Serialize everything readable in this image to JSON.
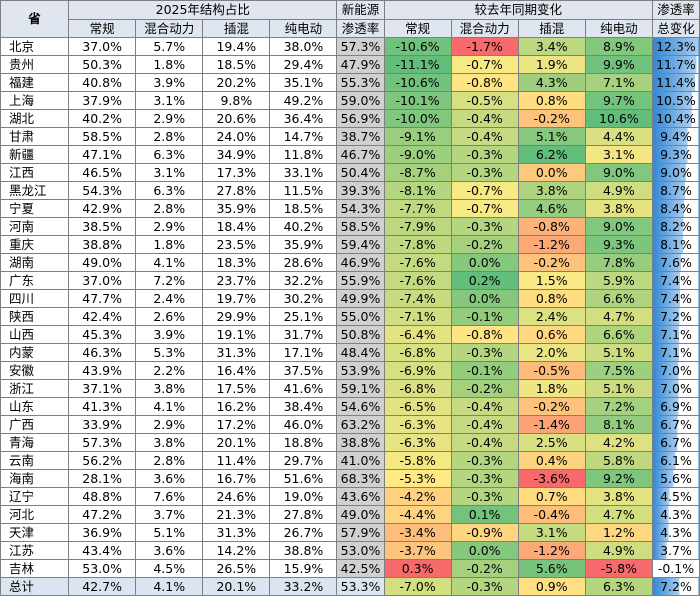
{
  "headers": {
    "province": "省",
    "group_structure": "2025年结构占比",
    "penetration_line1": "新能源",
    "penetration_line2": "渗透率",
    "group_change": "较去年同期变化",
    "total_pen_line1": "渗透率",
    "total_pen_line2": "总变化",
    "cols": [
      "常规",
      "混合动力",
      "插混",
      "纯电动"
    ]
  },
  "colors": {
    "header_bg": "#dfe6f0",
    "penetration_bg": "#d0d0d0",
    "total_row_bg": "#dbe5f1"
  },
  "rows": [
    {
      "p": "北京",
      "s": [
        "37.0%",
        "5.7%",
        "19.4%",
        "38.0%"
      ],
      "pen": "57.3%",
      "c": [
        "-10.6%",
        "-1.7%",
        "3.4%",
        "8.9%"
      ],
      "t": "12.3%"
    },
    {
      "p": "贵州",
      "s": [
        "50.3%",
        "1.8%",
        "18.5%",
        "29.4%"
      ],
      "pen": "47.9%",
      "c": [
        "-11.1%",
        "-0.7%",
        "1.9%",
        "9.9%"
      ],
      "t": "11.7%"
    },
    {
      "p": "福建",
      "s": [
        "40.8%",
        "3.9%",
        "20.2%",
        "35.1%"
      ],
      "pen": "55.3%",
      "c": [
        "-10.6%",
        "-0.8%",
        "4.3%",
        "7.1%"
      ],
      "t": "11.4%"
    },
    {
      "p": "上海",
      "s": [
        "37.9%",
        "3.1%",
        "9.8%",
        "49.2%"
      ],
      "pen": "59.0%",
      "c": [
        "-10.1%",
        "-0.5%",
        "0.8%",
        "9.7%"
      ],
      "t": "10.5%"
    },
    {
      "p": "湖北",
      "s": [
        "40.2%",
        "2.9%",
        "20.6%",
        "36.4%"
      ],
      "pen": "56.9%",
      "c": [
        "-10.0%",
        "-0.4%",
        "-0.2%",
        "10.6%"
      ],
      "t": "10.4%"
    },
    {
      "p": "甘肃",
      "s": [
        "58.5%",
        "2.8%",
        "24.0%",
        "14.7%"
      ],
      "pen": "38.7%",
      "c": [
        "-9.1%",
        "-0.4%",
        "5.1%",
        "4.4%"
      ],
      "t": "9.4%"
    },
    {
      "p": "新疆",
      "s": [
        "47.1%",
        "6.3%",
        "34.9%",
        "11.8%"
      ],
      "pen": "46.7%",
      "c": [
        "-9.0%",
        "-0.3%",
        "6.2%",
        "3.1%"
      ],
      "t": "9.3%"
    },
    {
      "p": "江西",
      "s": [
        "46.5%",
        "3.1%",
        "17.3%",
        "33.1%"
      ],
      "pen": "50.4%",
      "c": [
        "-8.7%",
        "-0.3%",
        "0.0%",
        "9.0%"
      ],
      "t": "9.0%"
    },
    {
      "p": "黑龙江",
      "s": [
        "54.3%",
        "6.3%",
        "27.8%",
        "11.5%"
      ],
      "pen": "39.3%",
      "c": [
        "-8.1%",
        "-0.7%",
        "3.8%",
        "4.9%"
      ],
      "t": "8.7%"
    },
    {
      "p": "宁夏",
      "s": [
        "42.9%",
        "2.8%",
        "35.9%",
        "18.5%"
      ],
      "pen": "54.3%",
      "c": [
        "-7.7%",
        "-0.7%",
        "4.6%",
        "3.8%"
      ],
      "t": "8.4%"
    },
    {
      "p": "河南",
      "s": [
        "38.5%",
        "2.9%",
        "18.4%",
        "40.2%"
      ],
      "pen": "58.5%",
      "c": [
        "-7.9%",
        "-0.3%",
        "-0.8%",
        "9.0%"
      ],
      "t": "8.2%"
    },
    {
      "p": "重庆",
      "s": [
        "38.8%",
        "1.8%",
        "23.5%",
        "35.9%"
      ],
      "pen": "59.4%",
      "c": [
        "-7.8%",
        "-0.2%",
        "-1.2%",
        "9.3%"
      ],
      "t": "8.1%"
    },
    {
      "p": "湖南",
      "s": [
        "49.0%",
        "4.1%",
        "18.3%",
        "28.6%"
      ],
      "pen": "46.9%",
      "c": [
        "-7.6%",
        "0.0%",
        "-0.2%",
        "7.8%"
      ],
      "t": "7.6%"
    },
    {
      "p": "广东",
      "s": [
        "37.0%",
        "7.2%",
        "23.7%",
        "32.2%"
      ],
      "pen": "55.9%",
      "c": [
        "-7.6%",
        "0.2%",
        "1.5%",
        "5.9%"
      ],
      "t": "7.4%"
    },
    {
      "p": "四川",
      "s": [
        "47.7%",
        "2.4%",
        "19.7%",
        "30.2%"
      ],
      "pen": "49.9%",
      "c": [
        "-7.4%",
        "0.0%",
        "0.8%",
        "6.6%"
      ],
      "t": "7.4%"
    },
    {
      "p": "陕西",
      "s": [
        "42.4%",
        "2.6%",
        "29.9%",
        "25.1%"
      ],
      "pen": "55.0%",
      "c": [
        "-7.1%",
        "-0.1%",
        "2.4%",
        "4.7%"
      ],
      "t": "7.2%"
    },
    {
      "p": "山西",
      "s": [
        "45.3%",
        "3.9%",
        "19.1%",
        "31.7%"
      ],
      "pen": "50.8%",
      "c": [
        "-6.4%",
        "-0.8%",
        "0.6%",
        "6.6%"
      ],
      "t": "7.1%"
    },
    {
      "p": "内蒙",
      "s": [
        "46.3%",
        "5.3%",
        "31.3%",
        "17.1%"
      ],
      "pen": "48.4%",
      "c": [
        "-6.8%",
        "-0.3%",
        "2.0%",
        "5.1%"
      ],
      "t": "7.1%"
    },
    {
      "p": "安徽",
      "s": [
        "43.9%",
        "2.2%",
        "16.4%",
        "37.5%"
      ],
      "pen": "53.9%",
      "c": [
        "-6.9%",
        "-0.1%",
        "-0.5%",
        "7.5%"
      ],
      "t": "7.0%"
    },
    {
      "p": "浙江",
      "s": [
        "37.1%",
        "3.8%",
        "17.5%",
        "41.6%"
      ],
      "pen": "59.1%",
      "c": [
        "-6.8%",
        "-0.2%",
        "1.8%",
        "5.1%"
      ],
      "t": "7.0%"
    },
    {
      "p": "山东",
      "s": [
        "41.3%",
        "4.1%",
        "16.2%",
        "38.4%"
      ],
      "pen": "54.6%",
      "c": [
        "-6.5%",
        "-0.4%",
        "-0.2%",
        "7.2%"
      ],
      "t": "6.9%"
    },
    {
      "p": "广西",
      "s": [
        "33.9%",
        "2.9%",
        "17.2%",
        "46.0%"
      ],
      "pen": "63.2%",
      "c": [
        "-6.3%",
        "-0.4%",
        "-1.4%",
        "8.1%"
      ],
      "t": "6.7%"
    },
    {
      "p": "青海",
      "s": [
        "57.3%",
        "3.8%",
        "20.1%",
        "18.8%"
      ],
      "pen": "38.8%",
      "c": [
        "-6.3%",
        "-0.4%",
        "2.5%",
        "4.2%"
      ],
      "t": "6.7%"
    },
    {
      "p": "云南",
      "s": [
        "56.2%",
        "2.8%",
        "11.4%",
        "29.7%"
      ],
      "pen": "41.0%",
      "c": [
        "-5.8%",
        "-0.3%",
        "0.4%",
        "5.8%"
      ],
      "t": "6.1%"
    },
    {
      "p": "海南",
      "s": [
        "28.1%",
        "3.6%",
        "16.7%",
        "51.6%"
      ],
      "pen": "68.3%",
      "c": [
        "-5.3%",
        "-0.3%",
        "-3.6%",
        "9.2%"
      ],
      "t": "5.6%"
    },
    {
      "p": "辽宁",
      "s": [
        "48.8%",
        "7.6%",
        "24.6%",
        "19.0%"
      ],
      "pen": "43.6%",
      "c": [
        "-4.2%",
        "-0.3%",
        "0.7%",
        "3.8%"
      ],
      "t": "4.5%"
    },
    {
      "p": "河北",
      "s": [
        "47.2%",
        "3.7%",
        "21.3%",
        "27.8%"
      ],
      "pen": "49.0%",
      "c": [
        "-4.4%",
        "0.1%",
        "-0.4%",
        "4.7%"
      ],
      "t": "4.3%"
    },
    {
      "p": "天津",
      "s": [
        "36.9%",
        "5.1%",
        "31.3%",
        "26.7%"
      ],
      "pen": "57.9%",
      "c": [
        "-3.4%",
        "-0.9%",
        "3.1%",
        "1.2%"
      ],
      "t": "4.3%"
    },
    {
      "p": "江苏",
      "s": [
        "43.4%",
        "3.6%",
        "14.2%",
        "38.8%"
      ],
      "pen": "53.0%",
      "c": [
        "-3.7%",
        "0.0%",
        "-1.2%",
        "4.9%"
      ],
      "t": "3.7%"
    },
    {
      "p": "吉林",
      "s": [
        "53.0%",
        "4.5%",
        "26.5%",
        "15.9%"
      ],
      "pen": "42.5%",
      "c": [
        "0.3%",
        "-0.2%",
        "5.6%",
        "-5.8%"
      ],
      "t": "-0.1%"
    }
  ],
  "total": {
    "p": "总计",
    "s": [
      "42.7%",
      "4.1%",
      "20.1%",
      "33.2%"
    ],
    "pen": "53.3%",
    "c": [
      "-7.0%",
      "-0.3%",
      "0.9%",
      "6.3%"
    ],
    "t": "7.2%"
  }
}
